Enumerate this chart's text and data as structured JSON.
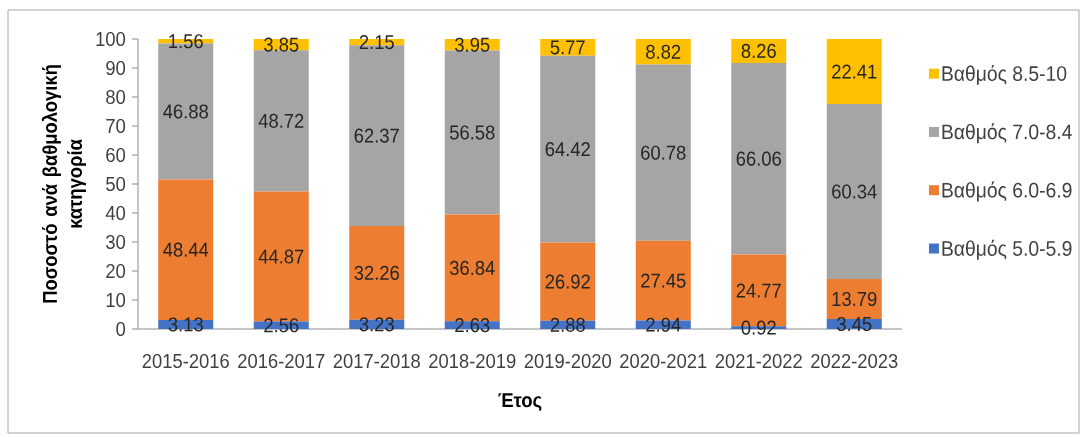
{
  "chart_data": {
    "type": "bar",
    "stacked": true,
    "xlabel": "Έτος",
    "ylabel": "Ποσοστό ανά βαθμολογική κατηγορία",
    "categories": [
      "2015-2016",
      "2016-2017",
      "2017-2018",
      "2018-2019",
      "2019-2020",
      "2020-2021",
      "2021-2022",
      "2022-2023"
    ],
    "series": [
      {
        "name": "Βαθμός 5.0-5.9",
        "color": "#4472c4",
        "values": [
          3.13,
          2.56,
          3.23,
          2.63,
          2.88,
          2.94,
          0.92,
          3.45
        ]
      },
      {
        "name": "Βαθμός 6.0-6.9",
        "color": "#ed7d31",
        "values": [
          48.44,
          44.87,
          32.26,
          36.84,
          26.92,
          27.45,
          24.77,
          13.79
        ]
      },
      {
        "name": "Βαθμός 7.0-8.4",
        "color": "#a5a5a5",
        "values": [
          46.88,
          48.72,
          62.37,
          56.58,
          64.42,
          60.78,
          66.06,
          60.34
        ]
      },
      {
        "name": "Βαθμός 8.5-10",
        "color": "#ffc000",
        "values": [
          1.56,
          3.85,
          2.15,
          3.95,
          5.77,
          8.82,
          8.26,
          22.41
        ]
      }
    ],
    "ylim": [
      0,
      100
    ],
    "yticks": [
      0,
      10,
      20,
      30,
      40,
      50,
      60,
      70,
      80,
      90,
      100
    ],
    "data_labels": true,
    "legend": "right"
  }
}
